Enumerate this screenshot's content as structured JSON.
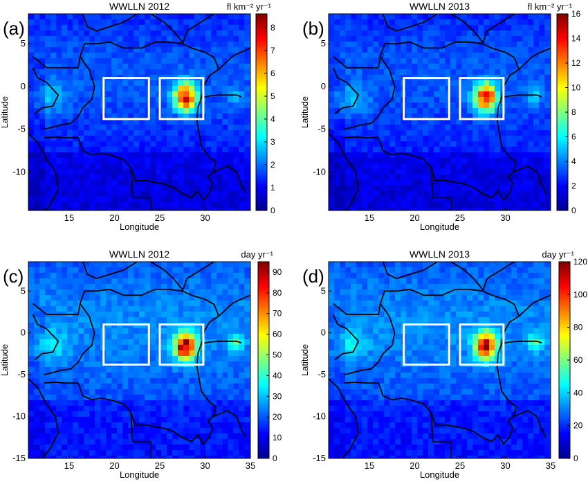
{
  "chart_data": [
    {
      "type": "heatmap",
      "panel_label": "(a)",
      "title": "WWLLN 2012",
      "colorbar_label": "fl km⁻² yr⁻¹",
      "xlabel": "Longitude",
      "ylabel": "Latitude",
      "xlim": [
        10.5,
        35
      ],
      "ylim": [
        -14.5,
        8.5
      ],
      "x_ticks": [
        15,
        20,
        25,
        30
      ],
      "y_ticks": [
        5,
        0,
        -5,
        -10
      ],
      "colorbar_range": [
        0,
        8.6
      ],
      "colorbar_ticks": [
        0,
        1,
        2,
        3,
        4,
        5,
        6,
        7,
        8
      ],
      "boxes": [
        {
          "lon": [
            18.8,
            23.8
          ],
          "lat": [
            -3.8,
            1.0
          ]
        },
        {
          "lon": [
            25.0,
            29.8
          ],
          "lat": [
            -3.8,
            1.0
          ]
        }
      ],
      "hotspot": {
        "lon": 27.8,
        "lat": -1.3,
        "peak": 8.0
      }
    },
    {
      "type": "heatmap",
      "panel_label": "(b)",
      "title": "WWLLN 2013",
      "colorbar_label": "fl km⁻² yr⁻¹",
      "xlabel": "Longitude",
      "ylabel": "Latitude",
      "xlim": [
        10.5,
        35
      ],
      "ylim": [
        -14.5,
        8.5
      ],
      "x_ticks": [
        15,
        20,
        25,
        30
      ],
      "y_ticks": [
        5,
        0,
        -5,
        -10
      ],
      "colorbar_range": [
        0,
        16
      ],
      "colorbar_ticks": [
        0,
        2,
        4,
        6,
        8,
        10,
        12,
        14,
        16
      ],
      "boxes": [
        {
          "lon": [
            18.8,
            23.8
          ],
          "lat": [
            -3.8,
            1.0
          ]
        },
        {
          "lon": [
            25.0,
            29.8
          ],
          "lat": [
            -3.8,
            1.0
          ]
        }
      ],
      "hotspot": {
        "lon": 27.8,
        "lat": -1.3,
        "peak": 15.0
      }
    },
    {
      "type": "heatmap",
      "panel_label": "(c)",
      "title": "WWLLN 2012",
      "colorbar_label": "day yr⁻¹",
      "xlabel": "Longitude",
      "ylabel": "Latitude",
      "xlim": [
        10.5,
        35
      ],
      "ylim": [
        -15,
        8.5
      ],
      "x_ticks": [
        15,
        20,
        25,
        30,
        35
      ],
      "y_ticks": [
        5,
        0,
        -5,
        -10,
        -15
      ],
      "colorbar_range": [
        0,
        95
      ],
      "colorbar_ticks": [
        0,
        10,
        20,
        30,
        40,
        50,
        60,
        70,
        80,
        90
      ],
      "boxes": [
        {
          "lon": [
            18.8,
            23.8
          ],
          "lat": [
            -3.8,
            1.0
          ]
        },
        {
          "lon": [
            25.0,
            29.8
          ],
          "lat": [
            -3.8,
            1.0
          ]
        }
      ],
      "hotspot": {
        "lon": 27.8,
        "lat": -1.6,
        "peak": 90
      }
    },
    {
      "type": "heatmap",
      "panel_label": "(d)",
      "title": "WWLLN 2013",
      "colorbar_label": "day yr⁻¹",
      "xlabel": "Longitude",
      "ylabel": "Latitude",
      "xlim": [
        10.5,
        35
      ],
      "ylim": [
        -15,
        8.5
      ],
      "x_ticks": [
        15,
        20,
        25,
        30,
        35
      ],
      "y_ticks": [
        5,
        0,
        -5,
        -10,
        -15
      ],
      "colorbar_range": [
        0,
        120
      ],
      "colorbar_ticks": [
        0,
        20,
        40,
        60,
        80,
        100,
        120
      ],
      "boxes": [
        {
          "lon": [
            18.8,
            23.8
          ],
          "lat": [
            -3.8,
            1.0
          ]
        },
        {
          "lon": [
            25.0,
            29.8
          ],
          "lat": [
            -3.8,
            1.0
          ]
        }
      ],
      "hotspot": {
        "lon": 27.8,
        "lat": -1.6,
        "peak": 110
      }
    }
  ]
}
